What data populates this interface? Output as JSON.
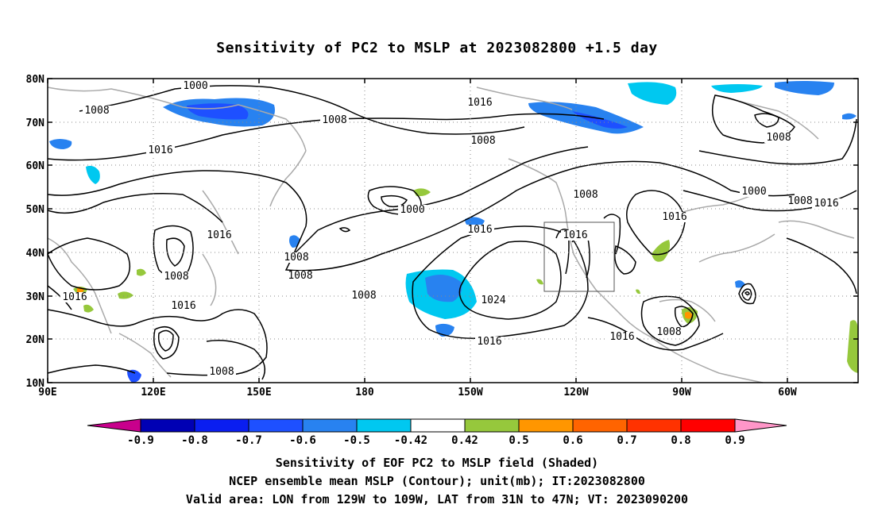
{
  "title": "Sensitivity of PC2 to MSLP at 2023082800 +1.5 day",
  "map": {
    "lon_labels": [
      "90E",
      "120E",
      "150E",
      "180",
      "150W",
      "120W",
      "90W",
      "60W"
    ],
    "lat_labels": [
      "80N",
      "70N",
      "60N",
      "50N",
      "40N",
      "30N",
      "20N",
      "10N"
    ],
    "contour_labels": [
      "1000",
      "1008",
      "1008",
      "1016",
      "1016",
      "1008",
      "1008",
      "1016",
      "1000",
      "1016",
      "1016",
      "1008",
      "1008",
      "1016",
      "1016",
      "1008",
      "1008",
      "1008",
      "1024",
      "1016",
      "1016",
      "1008",
      "1008",
      "1000",
      "1008",
      "1016",
      "1016"
    ],
    "valid_box": {
      "lon_min": "129W",
      "lon_max": "109W",
      "lat_min": "31N",
      "lat_max": "47N"
    }
  },
  "colorbar": {
    "labels": [
      "-0.9",
      "-0.8",
      "-0.7",
      "-0.6",
      "-0.5",
      "-0.42",
      "0.42",
      "0.5",
      "0.6",
      "0.7",
      "0.8",
      "0.9"
    ],
    "colors": [
      "#c8008c",
      "#0000b4",
      "#0a1ef0",
      "#1e50ff",
      "#2882f0",
      "#00c8f0",
      "#ffffff",
      "#96c83c",
      "#ff9600",
      "#ff6400",
      "#ff3200",
      "#ff0000",
      "#ff96c8"
    ]
  },
  "footer": {
    "line1": "Sensitivity of EOF PC2 to MSLP field (Shaded)",
    "line2": "NCEP ensemble mean MSLP (Contour); unit(mb); IT:2023082800",
    "line3": "Valid area: LON from 129W to 109W, LAT from 31N to 47N; VT: 2023090200"
  }
}
